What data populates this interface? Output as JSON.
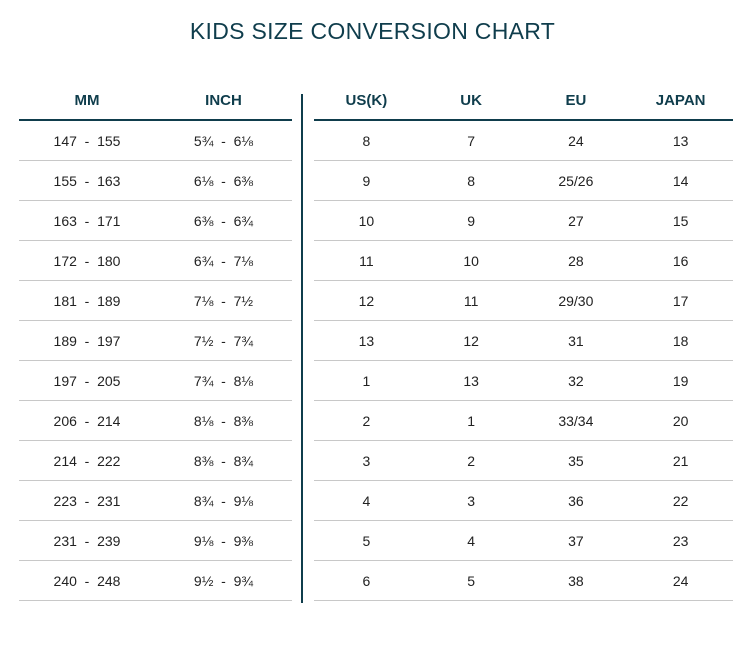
{
  "title": "KIDS SIZE CONVERSION CHART",
  "headers": {
    "mm": "MM",
    "inch": "INCH",
    "us": "US(K)",
    "uk": "UK",
    "eu": "EU",
    "japan": "JAPAN"
  },
  "rows": [
    {
      "mm": "147  -  155",
      "inch": "5¾  -  6⅛",
      "us": "8",
      "uk": "7",
      "eu": "24",
      "japan": "13"
    },
    {
      "mm": "155  -  163",
      "inch": "6⅛  -  6⅜",
      "us": "9",
      "uk": "8",
      "eu": "25/26",
      "japan": "14"
    },
    {
      "mm": "163  -  171",
      "inch": "6⅜  -  6¾",
      "us": "10",
      "uk": "9",
      "eu": "27",
      "japan": "15"
    },
    {
      "mm": "172  -  180",
      "inch": "6¾  -  7⅛",
      "us": "11",
      "uk": "10",
      "eu": "28",
      "japan": "16"
    },
    {
      "mm": "181  -  189",
      "inch": "7⅛  -  7½",
      "us": "12",
      "uk": "11",
      "eu": "29/30",
      "japan": "17"
    },
    {
      "mm": "189  -  197",
      "inch": "7½  -  7¾",
      "us": "13",
      "uk": "12",
      "eu": "31",
      "japan": "18"
    },
    {
      "mm": "197  -  205",
      "inch": "7¾  -  8⅛",
      "us": "1",
      "uk": "13",
      "eu": "32",
      "japan": "19"
    },
    {
      "mm": "206  -  214",
      "inch": "8⅛  -  8⅜",
      "us": "2",
      "uk": "1",
      "eu": "33/34",
      "japan": "20"
    },
    {
      "mm": "214  -  222",
      "inch": "8⅜  -  8¾",
      "us": "3",
      "uk": "2",
      "eu": "35",
      "japan": "21"
    },
    {
      "mm": "223  -  231",
      "inch": "8¾  -  9⅛",
      "us": "4",
      "uk": "3",
      "eu": "36",
      "japan": "22"
    },
    {
      "mm": "231  -  239",
      "inch": "9⅛  -  9⅜",
      "us": "5",
      "uk": "4",
      "eu": "37",
      "japan": "23"
    },
    {
      "mm": "240  -  248",
      "inch": "9½  -  9¾",
      "us": "6",
      "uk": "5",
      "eu": "38",
      "japan": "24"
    }
  ],
  "colors": {
    "accent": "#0f3d4c",
    "rule": "#c8c8c8",
    "text": "#222222"
  }
}
